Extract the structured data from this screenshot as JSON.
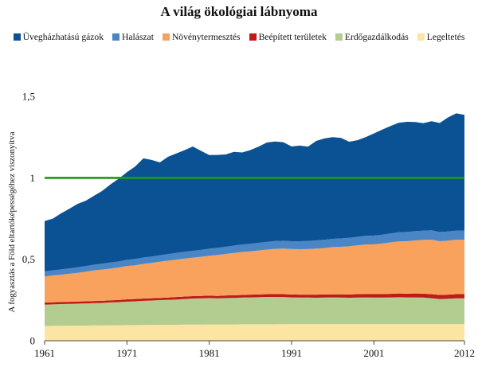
{
  "chart_data": {
    "type": "area",
    "title": "A világ ökológiai lábnyoma",
    "xlabel": "",
    "ylabel": "A fogyasztás a Föld eltartóképességéhez viszonyítva",
    "x": [
      1961,
      1962,
      1963,
      1964,
      1965,
      1966,
      1967,
      1968,
      1969,
      1970,
      1971,
      1972,
      1973,
      1974,
      1975,
      1976,
      1977,
      1978,
      1979,
      1980,
      1981,
      1982,
      1983,
      1984,
      1985,
      1986,
      1987,
      1988,
      1989,
      1990,
      1991,
      1992,
      1993,
      1994,
      1995,
      1996,
      1997,
      1998,
      1999,
      2000,
      2001,
      2002,
      2003,
      2004,
      2005,
      2006,
      2007,
      2008,
      2009,
      2010,
      2011,
      2012
    ],
    "x_ticks": [
      "1961",
      "1971",
      "1981",
      "1991",
      "2001",
      "2012"
    ],
    "y_ticks": [
      "0",
      "0,5",
      "1",
      "1,5"
    ],
    "ylim": [
      0,
      1.75
    ],
    "xlim": [
      1961,
      2012
    ],
    "grid": false,
    "legend_position": "top",
    "reference_line": {
      "value": 1.0,
      "color": "#1a9a1a"
    },
    "series": [
      {
        "name": "Legeltetés",
        "color": "#fce4a2",
        "values": [
          0.09,
          0.091,
          0.092,
          0.092,
          0.093,
          0.093,
          0.094,
          0.094,
          0.095,
          0.095,
          0.096,
          0.096,
          0.097,
          0.097,
          0.098,
          0.098,
          0.098,
          0.099,
          0.099,
          0.099,
          0.1,
          0.1,
          0.1,
          0.1,
          0.101,
          0.101,
          0.101,
          0.101,
          0.101,
          0.102,
          0.102,
          0.102,
          0.102,
          0.102,
          0.102,
          0.102,
          0.102,
          0.102,
          0.102,
          0.102,
          0.102,
          0.102,
          0.102,
          0.102,
          0.102,
          0.102,
          0.102,
          0.102,
          0.102,
          0.102,
          0.102,
          0.102
        ]
      },
      {
        "name": "Erdőgazdálkodás",
        "color": "#b3cc8f",
        "values": [
          0.132,
          0.132,
          0.133,
          0.134,
          0.135,
          0.136,
          0.137,
          0.138,
          0.14,
          0.142,
          0.144,
          0.146,
          0.148,
          0.15,
          0.151,
          0.153,
          0.155,
          0.157,
          0.16,
          0.161,
          0.162,
          0.16,
          0.162,
          0.163,
          0.164,
          0.165,
          0.166,
          0.168,
          0.168,
          0.166,
          0.164,
          0.163,
          0.163,
          0.162,
          0.163,
          0.164,
          0.163,
          0.162,
          0.163,
          0.164,
          0.163,
          0.163,
          0.164,
          0.165,
          0.164,
          0.164,
          0.163,
          0.159,
          0.154,
          0.156,
          0.158,
          0.158
        ]
      },
      {
        "name": "Beépített területek",
        "color": "#c11b17",
        "values": [
          0.013,
          0.013,
          0.013,
          0.013,
          0.013,
          0.013,
          0.013,
          0.013,
          0.013,
          0.013,
          0.014,
          0.014,
          0.014,
          0.014,
          0.014,
          0.014,
          0.015,
          0.015,
          0.015,
          0.015,
          0.015,
          0.015,
          0.016,
          0.016,
          0.016,
          0.017,
          0.017,
          0.017,
          0.017,
          0.018,
          0.018,
          0.018,
          0.018,
          0.019,
          0.019,
          0.019,
          0.02,
          0.02,
          0.021,
          0.021,
          0.022,
          0.022,
          0.022,
          0.023,
          0.023,
          0.024,
          0.024,
          0.025,
          0.025,
          0.025,
          0.026,
          0.026
        ]
      },
      {
        "name": "Növénytermesztés",
        "color": "#f8a25e",
        "values": [
          0.16,
          0.165,
          0.168,
          0.172,
          0.176,
          0.182,
          0.188,
          0.192,
          0.195,
          0.2,
          0.205,
          0.207,
          0.213,
          0.217,
          0.222,
          0.227,
          0.23,
          0.233,
          0.236,
          0.24,
          0.245,
          0.252,
          0.255,
          0.26,
          0.264,
          0.266,
          0.27,
          0.274,
          0.278,
          0.28,
          0.279,
          0.279,
          0.28,
          0.283,
          0.285,
          0.29,
          0.292,
          0.296,
          0.3,
          0.304,
          0.305,
          0.31,
          0.316,
          0.32,
          0.322,
          0.326,
          0.33,
          0.335,
          0.33,
          0.332,
          0.334,
          0.335
        ]
      },
      {
        "name": "Halászat",
        "color": "#4a86c5",
        "values": [
          0.03,
          0.031,
          0.032,
          0.033,
          0.034,
          0.034,
          0.035,
          0.036,
          0.037,
          0.037,
          0.038,
          0.039,
          0.039,
          0.039,
          0.04,
          0.04,
          0.041,
          0.042,
          0.042,
          0.043,
          0.043,
          0.044,
          0.044,
          0.045,
          0.046,
          0.046,
          0.047,
          0.047,
          0.048,
          0.048,
          0.048,
          0.049,
          0.049,
          0.05,
          0.051,
          0.051,
          0.051,
          0.052,
          0.052,
          0.053,
          0.053,
          0.054,
          0.055,
          0.056,
          0.057,
          0.057,
          0.057,
          0.057,
          0.056,
          0.056,
          0.056,
          0.056
        ]
      },
      {
        "name": "Üvegházhatású gázok",
        "color": "#0b5294",
        "values": [
          0.31,
          0.318,
          0.344,
          0.366,
          0.389,
          0.402,
          0.423,
          0.447,
          0.48,
          0.508,
          0.538,
          0.568,
          0.609,
          0.593,
          0.57,
          0.598,
          0.611,
          0.624,
          0.641,
          0.608,
          0.575,
          0.57,
          0.567,
          0.576,
          0.565,
          0.576,
          0.591,
          0.61,
          0.611,
          0.605,
          0.582,
          0.587,
          0.58,
          0.611,
          0.622,
          0.624,
          0.617,
          0.59,
          0.593,
          0.606,
          0.628,
          0.645,
          0.659,
          0.672,
          0.676,
          0.67,
          0.66,
          0.67,
          0.67,
          0.7,
          0.72,
          0.71
        ]
      }
    ]
  }
}
